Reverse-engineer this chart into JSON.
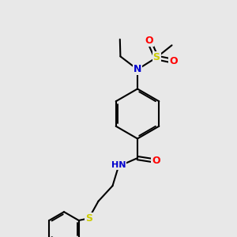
{
  "bg_color": "#e8e8e8",
  "atom_colors": {
    "C": "#000000",
    "N": "#0000cd",
    "O": "#ff0000",
    "S": "#cccc00",
    "H": "#7a9999"
  },
  "bond_color": "#000000",
  "bond_width": 1.5,
  "font_size_atom": 8.5
}
